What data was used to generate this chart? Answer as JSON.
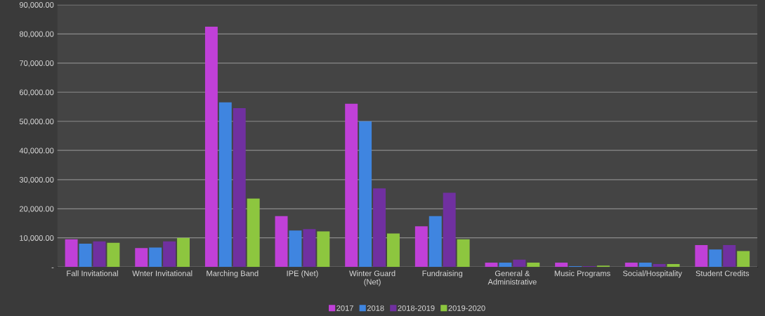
{
  "chart_data": {
    "type": "bar",
    "categories": [
      "Fall Invitational",
      "Wnter Invitational",
      "Marching Band",
      "IPE (Net)",
      "Winter Guard\n(Net)",
      "Fundraising",
      "General &\nAdministrative",
      "Music Programs",
      "Social/Hospitality",
      "Student Credits"
    ],
    "series": [
      {
        "name": "2017",
        "color": "#c040d8",
        "values": [
          9500,
          6500,
          82500,
          17500,
          56000,
          14000,
          1500,
          1500,
          1500,
          7500
        ]
      },
      {
        "name": "2018",
        "color": "#3f85e0",
        "values": [
          8000,
          6700,
          56500,
          12500,
          50000,
          17500,
          1500,
          300,
          1500,
          6000
        ]
      },
      {
        "name": "2018-2019",
        "color": "#7030a0",
        "values": [
          8800,
          8800,
          54500,
          13000,
          27000,
          25500,
          2500,
          300,
          1000,
          7500
        ]
      },
      {
        "name": "2019-2020",
        "color": "#8dc63f",
        "values": [
          8300,
          10000,
          23500,
          12200,
          11500,
          9500,
          1500,
          500,
          1000,
          5500
        ]
      }
    ],
    "ylim": [
      0,
      90000
    ],
    "yticks": [
      {
        "value": 0,
        "label": "-"
      },
      {
        "value": 10000,
        "label": "10,000.00"
      },
      {
        "value": 20000,
        "label": "20,000.00"
      },
      {
        "value": 30000,
        "label": "30,000.00"
      },
      {
        "value": 40000,
        "label": "40,000.00"
      },
      {
        "value": 50000,
        "label": "50,000.00"
      },
      {
        "value": 60000,
        "label": "60,000.00"
      },
      {
        "value": 70000,
        "label": "70,000.00"
      },
      {
        "value": 80000,
        "label": "80,000.00"
      },
      {
        "value": 90000,
        "label": "90,000.00"
      }
    ],
    "grid": "y",
    "legend": "bottom"
  }
}
